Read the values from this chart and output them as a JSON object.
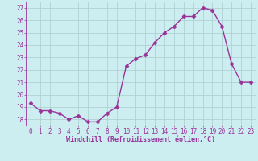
{
  "x": [
    0,
    1,
    2,
    3,
    4,
    5,
    6,
    7,
    8,
    9,
    10,
    11,
    12,
    13,
    14,
    15,
    16,
    17,
    18,
    19,
    20,
    21,
    22,
    23
  ],
  "y": [
    19.3,
    18.7,
    18.7,
    18.5,
    18.0,
    18.3,
    17.8,
    17.8,
    18.5,
    19.0,
    22.3,
    22.9,
    23.2,
    24.2,
    25.0,
    25.5,
    26.3,
    26.3,
    27.0,
    26.8,
    25.5,
    22.5,
    21.0,
    21.0
  ],
  "line_color": "#993399",
  "marker": "D",
  "marker_size": 2.5,
  "background_color": "#cceef0",
  "grid_color": "#aacccc",
  "xlabel": "Windchill (Refroidissement éolien,°C)",
  "xlabel_color": "#993399",
  "tick_color": "#993399",
  "ylim": [
    17.5,
    27.5
  ],
  "yticks": [
    18,
    19,
    20,
    21,
    22,
    23,
    24,
    25,
    26,
    27
  ],
  "xticks": [
    0,
    1,
    2,
    3,
    4,
    5,
    6,
    7,
    8,
    9,
    10,
    11,
    12,
    13,
    14,
    15,
    16,
    17,
    18,
    19,
    20,
    21,
    22,
    23
  ],
  "line_width": 1.0,
  "tick_fontsize": 5.5,
  "xlabel_fontsize": 6.0,
  "ylabel_fontsize": 6.0
}
